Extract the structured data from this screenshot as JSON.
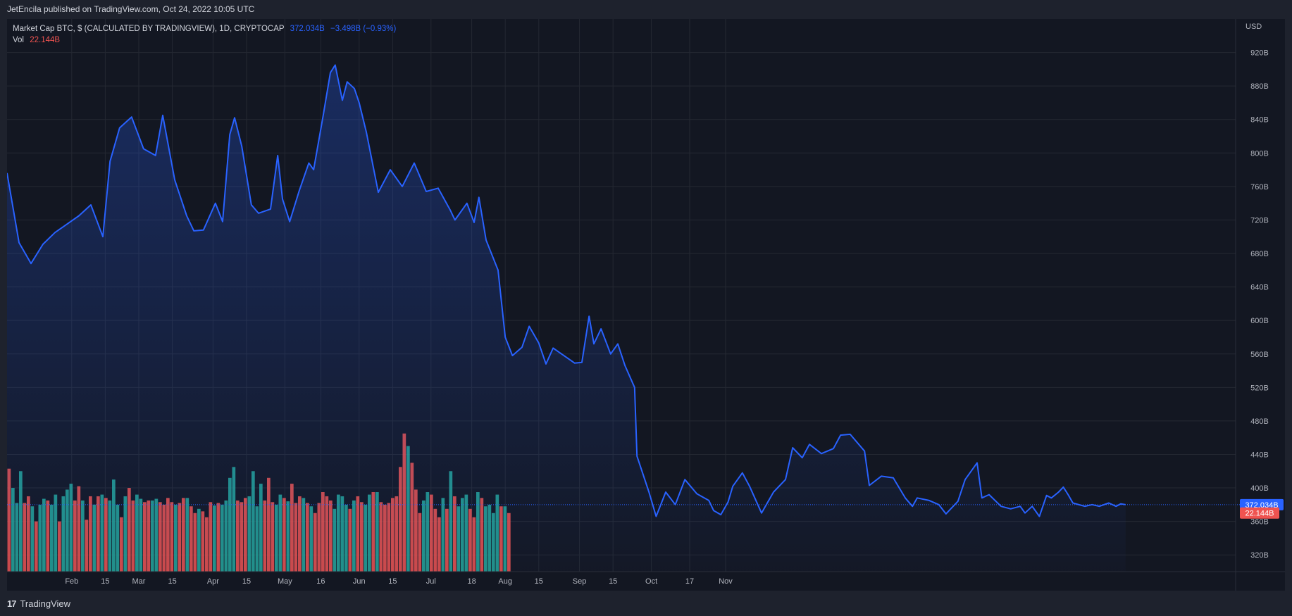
{
  "header": {
    "published_text": "JetEncila published on TradingView.com, Oct 24, 2022 10:05 UTC"
  },
  "legend": {
    "symbol": "Market Cap BTC, $ (CALCULATED BY TRADINGVIEW), 1D, CRYPTOCAP",
    "last_value": "372.034B",
    "change": "−3.498B (−0.93%)",
    "vol_label": "Vol",
    "vol_value": "22.144B"
  },
  "footer": {
    "brand": "TradingView",
    "logo_icon": "tradingview-logo-icon"
  },
  "colors": {
    "line": "#2962ff",
    "up_volume": "#26a69a",
    "down_volume": "#ef5350",
    "background": "#131722",
    "grid": "#242832",
    "text": "#b2b5be"
  },
  "chart_data": {
    "type": "area",
    "currency_label": "USD",
    "y_ticks": [
      "320B",
      "360B",
      "400B",
      "440B",
      "480B",
      "520B",
      "560B",
      "600B",
      "640B",
      "680B",
      "720B",
      "760B",
      "800B",
      "840B",
      "880B",
      "920B"
    ],
    "ylim": [
      300,
      960
    ],
    "x_ticks": [
      "Feb",
      "15",
      "Mar",
      "15",
      "Apr",
      "15",
      "May",
      "16",
      "Jun",
      "15",
      "Jul",
      "18",
      "Aug",
      "15",
      "Sep",
      "15",
      "Oct",
      "17",
      "Nov"
    ],
    "x_tick_days": [
      32,
      46,
      60,
      74,
      91,
      105,
      121,
      136,
      152,
      166,
      182,
      199,
      213,
      227,
      244,
      258,
      274,
      290,
      305
    ],
    "last_price_label": "372.034B",
    "last_volume_label": "22.144B",
    "series": [
      {
        "points": [
          [
            5,
            776
          ],
          [
            10,
            693
          ],
          [
            15,
            668
          ],
          [
            20,
            691
          ],
          [
            25,
            705
          ],
          [
            30,
            715
          ],
          [
            35,
            725
          ],
          [
            40,
            738
          ],
          [
            45,
            700
          ],
          [
            48,
            790
          ],
          [
            52,
            830
          ],
          [
            57,
            843
          ],
          [
            62,
            805
          ],
          [
            67,
            797
          ],
          [
            70,
            845
          ],
          [
            75,
            768
          ],
          [
            80,
            725
          ],
          [
            83,
            707
          ],
          [
            87,
            708
          ],
          [
            92,
            740
          ],
          [
            95,
            718
          ],
          [
            98,
            822
          ],
          [
            100,
            842
          ],
          [
            103,
            808
          ],
          [
            107,
            738
          ],
          [
            110,
            728
          ],
          [
            115,
            733
          ],
          [
            118,
            797
          ],
          [
            120,
            745
          ],
          [
            123,
            718
          ],
          [
            127,
            755
          ],
          [
            131,
            788
          ],
          [
            133,
            780
          ],
          [
            137,
            845
          ],
          [
            140,
            896
          ],
          [
            142,
            905
          ],
          [
            145,
            863
          ],
          [
            147,
            885
          ],
          [
            150,
            877
          ],
          [
            152,
            860
          ],
          [
            155,
            825
          ],
          [
            160,
            753
          ],
          [
            165,
            780
          ],
          [
            170,
            760
          ],
          [
            175,
            788
          ],
          [
            180,
            754
          ],
          [
            185,
            758
          ],
          [
            190,
            732
          ],
          [
            192,
            720
          ],
          [
            197,
            740
          ],
          [
            200,
            717
          ],
          [
            202,
            747
          ],
          [
            205,
            696
          ],
          [
            210,
            660
          ],
          [
            213,
            580
          ],
          [
            216,
            558
          ],
          [
            220,
            568
          ],
          [
            223,
            593
          ],
          [
            227,
            573
          ],
          [
            230,
            548
          ],
          [
            233,
            567
          ],
          [
            237,
            559
          ],
          [
            242,
            549
          ],
          [
            245,
            550
          ],
          [
            248,
            605
          ],
          [
            250,
            572
          ],
          [
            253,
            590
          ],
          [
            257,
            560
          ],
          [
            260,
            572
          ],
          [
            263,
            546
          ],
          [
            267,
            520
          ],
          [
            268,
            438
          ],
          [
            273,
            395
          ],
          [
            276,
            366
          ],
          [
            280,
            395
          ],
          [
            284,
            380
          ],
          [
            288,
            410
          ],
          [
            293,
            393
          ],
          [
            298,
            385
          ],
          [
            300,
            373
          ],
          [
            303,
            368
          ],
          [
            306,
            383
          ],
          [
            308,
            402
          ],
          [
            312,
            418
          ],
          [
            315,
            402
          ],
          [
            320,
            370
          ],
          [
            325,
            395
          ],
          [
            330,
            410
          ],
          [
            333,
            448
          ],
          [
            337,
            436
          ],
          [
            340,
            452
          ],
          [
            345,
            441
          ],
          [
            350,
            447
          ],
          [
            353,
            463
          ],
          [
            357,
            464
          ],
          [
            360,
            454
          ],
          [
            363,
            444
          ],
          [
            365,
            403
          ],
          [
            370,
            414
          ],
          [
            375,
            412
          ],
          [
            380,
            388
          ],
          [
            383,
            378
          ],
          [
            385,
            388
          ],
          [
            390,
            385
          ],
          [
            394,
            380
          ],
          [
            397,
            369
          ],
          [
            402,
            384
          ],
          [
            405,
            410
          ],
          [
            410,
            430
          ],
          [
            412,
            388
          ],
          [
            415,
            392
          ],
          [
            420,
            378
          ],
          [
            424,
            375
          ],
          [
            428,
            378
          ],
          [
            430,
            370
          ],
          [
            433,
            378
          ],
          [
            436,
            366
          ],
          [
            439,
            391
          ],
          [
            441,
            388
          ],
          [
            444,
            395
          ],
          [
            446,
            401
          ],
          [
            448,
            392
          ],
          [
            450,
            382
          ],
          [
            455,
            378
          ],
          [
            458,
            380
          ],
          [
            461,
            378
          ],
          [
            465,
            382
          ],
          [
            468,
            378
          ],
          [
            470,
            381
          ],
          [
            472,
            380
          ]
        ]
      }
    ],
    "volume": [
      {
        "v": 423,
        "up": false
      },
      {
        "v": 400,
        "up": true
      },
      {
        "v": 382,
        "up": true
      },
      {
        "v": 420,
        "up": true
      },
      {
        "v": 382,
        "up": false
      },
      {
        "v": 390,
        "up": false
      },
      {
        "v": 378,
        "up": true
      },
      {
        "v": 360,
        "up": false
      },
      {
        "v": 380,
        "up": true
      },
      {
        "v": 387,
        "up": true
      },
      {
        "v": 385,
        "up": false
      },
      {
        "v": 380,
        "up": true
      },
      {
        "v": 392,
        "up": true
      },
      {
        "v": 360,
        "up": false
      },
      {
        "v": 390,
        "up": true
      },
      {
        "v": 398,
        "up": true
      },
      {
        "v": 405,
        "up": true
      },
      {
        "v": 385,
        "up": false
      },
      {
        "v": 402,
        "up": false
      },
      {
        "v": 385,
        "up": true
      },
      {
        "v": 362,
        "up": false
      },
      {
        "v": 390,
        "up": false
      },
      {
        "v": 380,
        "up": true
      },
      {
        "v": 390,
        "up": false
      },
      {
        "v": 392,
        "up": true
      },
      {
        "v": 388,
        "up": false
      },
      {
        "v": 385,
        "up": true
      },
      {
        "v": 410,
        "up": true
      },
      {
        "v": 380,
        "up": true
      },
      {
        "v": 365,
        "up": false
      },
      {
        "v": 390,
        "up": true
      },
      {
        "v": 400,
        "up": false
      },
      {
        "v": 385,
        "up": false
      },
      {
        "v": 392,
        "up": true
      },
      {
        "v": 387,
        "up": true
      },
      {
        "v": 383,
        "up": false
      },
      {
        "v": 385,
        "up": false
      },
      {
        "v": 385,
        "up": true
      },
      {
        "v": 387,
        "up": true
      },
      {
        "v": 383,
        "up": false
      },
      {
        "v": 380,
        "up": false
      },
      {
        "v": 388,
        "up": false
      },
      {
        "v": 383,
        "up": false
      },
      {
        "v": 380,
        "up": true
      },
      {
        "v": 382,
        "up": false
      },
      {
        "v": 388,
        "up": false
      },
      {
        "v": 388,
        "up": true
      },
      {
        "v": 378,
        "up": false
      },
      {
        "v": 370,
        "up": false
      },
      {
        "v": 375,
        "up": true
      },
      {
        "v": 372,
        "up": false
      },
      {
        "v": 365,
        "up": false
      },
      {
        "v": 383,
        "up": false
      },
      {
        "v": 379,
        "up": true
      },
      {
        "v": 382,
        "up": false
      },
      {
        "v": 380,
        "up": true
      },
      {
        "v": 385,
        "up": true
      },
      {
        "v": 412,
        "up": true
      },
      {
        "v": 425,
        "up": true
      },
      {
        "v": 385,
        "up": false
      },
      {
        "v": 383,
        "up": false
      },
      {
        "v": 388,
        "up": false
      },
      {
        "v": 390,
        "up": true
      },
      {
        "v": 420,
        "up": true
      },
      {
        "v": 378,
        "up": true
      },
      {
        "v": 405,
        "up": true
      },
      {
        "v": 385,
        "up": false
      },
      {
        "v": 412,
        "up": false
      },
      {
        "v": 383,
        "up": false
      },
      {
        "v": 380,
        "up": true
      },
      {
        "v": 392,
        "up": true
      },
      {
        "v": 388,
        "up": false
      },
      {
        "v": 384,
        "up": true
      },
      {
        "v": 405,
        "up": false
      },
      {
        "v": 382,
        "up": false
      },
      {
        "v": 390,
        "up": false
      },
      {
        "v": 388,
        "up": true
      },
      {
        "v": 382,
        "up": false
      },
      {
        "v": 378,
        "up": true
      },
      {
        "v": 370,
        "up": false
      },
      {
        "v": 382,
        "up": false
      },
      {
        "v": 395,
        "up": false
      },
      {
        "v": 390,
        "up": false
      },
      {
        "v": 385,
        "up": false
      },
      {
        "v": 375,
        "up": true
      },
      {
        "v": 392,
        "up": true
      },
      {
        "v": 390,
        "up": true
      },
      {
        "v": 380,
        "up": true
      },
      {
        "v": 375,
        "up": false
      },
      {
        "v": 385,
        "up": true
      },
      {
        "v": 390,
        "up": false
      },
      {
        "v": 383,
        "up": false
      },
      {
        "v": 380,
        "up": true
      },
      {
        "v": 392,
        "up": true
      },
      {
        "v": 395,
        "up": false
      },
      {
        "v": 395,
        "up": true
      },
      {
        "v": 383,
        "up": false
      },
      {
        "v": 380,
        "up": false
      },
      {
        "v": 382,
        "up": false
      },
      {
        "v": 388,
        "up": false
      },
      {
        "v": 390,
        "up": false
      },
      {
        "v": 425,
        "up": false
      },
      {
        "v": 465,
        "up": false
      },
      {
        "v": 450,
        "up": true
      },
      {
        "v": 430,
        "up": false
      },
      {
        "v": 398,
        "up": false
      },
      {
        "v": 370,
        "up": false
      },
      {
        "v": 385,
        "up": true
      },
      {
        "v": 395,
        "up": true
      },
      {
        "v": 392,
        "up": false
      },
      {
        "v": 375,
        "up": false
      },
      {
        "v": 365,
        "up": false
      },
      {
        "v": 388,
        "up": true
      },
      {
        "v": 375,
        "up": false
      },
      {
        "v": 420,
        "up": true
      },
      {
        "v": 390,
        "up": false
      },
      {
        "v": 378,
        "up": true
      },
      {
        "v": 388,
        "up": true
      },
      {
        "v": 392,
        "up": true
      },
      {
        "v": 375,
        "up": false
      },
      {
        "v": 365,
        "up": false
      },
      {
        "v": 395,
        "up": true
      },
      {
        "v": 388,
        "up": false
      },
      {
        "v": 378,
        "up": true
      },
      {
        "v": 380,
        "up": true
      },
      {
        "v": 370,
        "up": true
      },
      {
        "v": 392,
        "up": true
      },
      {
        "v": 378,
        "up": false
      },
      {
        "v": 378,
        "up": true
      },
      {
        "v": 370,
        "up": false
      }
    ]
  }
}
